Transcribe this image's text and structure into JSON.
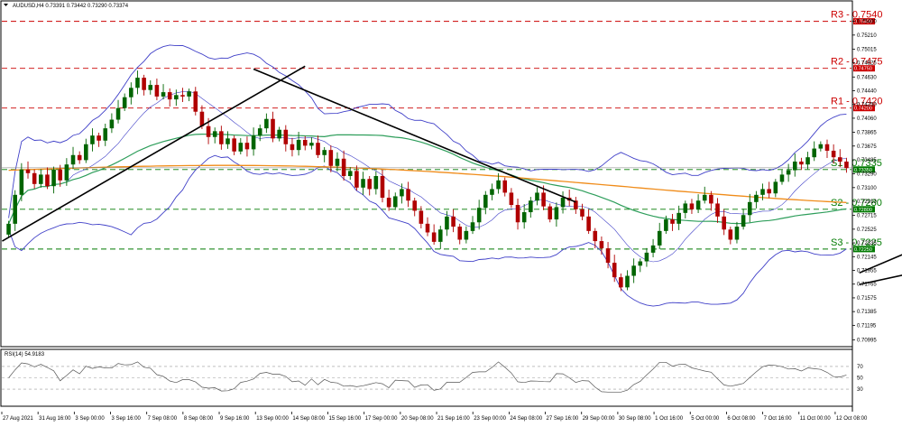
{
  "chart_data": {
    "type": "candlestick",
    "symbol": "AUDUSD,H4",
    "ohlc_header": "0.73391 0.73442 0.73290 0.73374",
    "ylim": [
      0.709,
      0.7567
    ],
    "y_ticks": [
      "0.75400",
      "0.75210",
      "0.75015",
      "0.74825",
      "0.74630",
      "0.74440",
      "0.74250",
      "0.74060",
      "0.73865",
      "0.73675",
      "0.73485",
      "0.73290",
      "0.73100",
      "0.72910",
      "0.72715",
      "0.72525",
      "0.72335",
      "0.72145",
      "0.71955",
      "0.71765",
      "0.71575",
      "0.71385",
      "0.71195",
      "0.70995"
    ],
    "x_ticks": [
      "27 Aug 2021",
      "31 Aug 16:00",
      "3 Sep 00:00",
      "3 Sep 16:00",
      "7 Sep 08:00",
      "8 Sep 08:00",
      "9 Sep 16:00",
      "13 Sep 00:00",
      "14 Sep 08:00",
      "15 Sep 16:00",
      "17 Sep 00:00",
      "20 Sep 08:00",
      "21 Sep 16:00",
      "23 Sep 00:00",
      "24 Sep 08:00",
      "27 Sep 16:00",
      "29 Sep 00:00",
      "30 Sep 08:00",
      "1 Oct 16:00",
      "5 Oct 00:00",
      "6 Oct 08:00",
      "7 Oct 16:00",
      "11 Oct 00:00",
      "12 Oct 08:00"
    ],
    "levels": [
      {
        "name": "R3",
        "label": "R3 - 0.7540",
        "value": 0.754,
        "color": "#cc0000",
        "tag": "0.75400"
      },
      {
        "name": "R2",
        "label": "R2 - 0.7475",
        "value": 0.7475,
        "color": "#cc0000",
        "tag": "0.74750"
      },
      {
        "name": "R1",
        "label": "R1 - 0.7420",
        "value": 0.742,
        "color": "#cc0000",
        "tag": "0.74200"
      },
      {
        "name": "S1",
        "label": "S1 - 0.7335",
        "value": 0.7335,
        "color": "#007a00",
        "tag": "0.73350"
      },
      {
        "name": "S2",
        "label": "S2 - 0.7280",
        "value": 0.728,
        "color": "#007a00",
        "tag": "0.72800"
      },
      {
        "name": "S3",
        "label": "S3 - 0.7225",
        "value": 0.7225,
        "color": "#007a00",
        "tag": "0.72250"
      }
    ],
    "current_price_tag": "0.73374",
    "closes": [
      0.726,
      0.73,
      0.7335,
      0.733,
      0.7315,
      0.7328,
      0.7312,
      0.7335,
      0.732,
      0.7342,
      0.7355,
      0.7348,
      0.737,
      0.7382,
      0.7375,
      0.7392,
      0.7404,
      0.742,
      0.7435,
      0.7448,
      0.7462,
      0.7445,
      0.7452,
      0.7436,
      0.7442,
      0.7432,
      0.7438,
      0.7436,
      0.7443,
      0.7415,
      0.7395,
      0.738,
      0.7388,
      0.737,
      0.7378,
      0.736,
      0.7372,
      0.7363,
      0.7382,
      0.7392,
      0.7405,
      0.7378,
      0.739,
      0.737,
      0.7362,
      0.7376,
      0.7368,
      0.7372,
      0.7355,
      0.7362,
      0.734,
      0.735,
      0.7326,
      0.7333,
      0.731,
      0.7322,
      0.7308,
      0.7326,
      0.7296,
      0.7283,
      0.7298,
      0.7308,
      0.7292,
      0.7278,
      0.726,
      0.7248,
      0.7235,
      0.7252,
      0.727,
      0.7256,
      0.7238,
      0.725,
      0.7262,
      0.7282,
      0.73,
      0.7308,
      0.732,
      0.7303,
      0.7286,
      0.7262,
      0.7276,
      0.7292,
      0.7303,
      0.7284,
      0.7266,
      0.7283,
      0.7296,
      0.7292,
      0.728,
      0.727,
      0.725,
      0.7236,
      0.7226,
      0.7206,
      0.7186,
      0.7172,
      0.7188,
      0.7202,
      0.7208,
      0.722,
      0.723,
      0.725,
      0.7266,
      0.726,
      0.7275,
      0.7288,
      0.728,
      0.7292,
      0.73,
      0.7288,
      0.727,
      0.7252,
      0.7238,
      0.7256,
      0.7272,
      0.729,
      0.73,
      0.7308,
      0.7302,
      0.7318,
      0.7328,
      0.7334,
      0.7346,
      0.7342,
      0.7352,
      0.7364,
      0.737,
      0.7361,
      0.7352,
      0.7346,
      0.7337
    ],
    "rsi": {
      "label": "RSI(14) 54.9183",
      "levels": [
        70,
        50,
        30
      ],
      "ylim": [
        0,
        100
      ],
      "last": 54.92
    }
  }
}
